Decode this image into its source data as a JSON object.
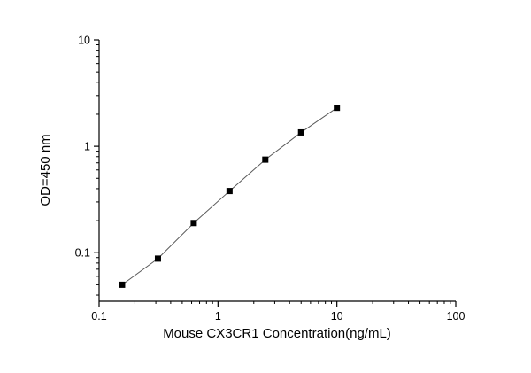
{
  "figure": {
    "background": "#ffffff"
  },
  "chart_data": {
    "type": "scatter",
    "line_overlay": true,
    "x": [
      0.156,
      0.3125,
      0.625,
      1.25,
      2.5,
      5,
      10
    ],
    "y": [
      0.05,
      0.088,
      0.19,
      0.38,
      0.75,
      1.35,
      2.3
    ],
    "title": "",
    "xlabel": "Mouse CX3CR1 Concentration(ng/mL)",
    "ylabel": "OD=450 nm",
    "xscale": "log",
    "yscale": "log",
    "xlim": [
      0.1,
      100
    ],
    "ylim": [
      0.035,
      10
    ],
    "xticks": [
      0.1,
      1,
      10,
      100
    ],
    "xtick_labels": [
      "0.1",
      "1",
      "10",
      "100"
    ],
    "yticks": [
      0.1,
      1,
      10
    ],
    "ytick_labels": [
      "0.1",
      "1",
      "10"
    ],
    "grid": false,
    "legend": null,
    "marker": "square",
    "marker_size": 7,
    "colors": {
      "marker": "#000000",
      "line": "#595959",
      "axis": "#000000",
      "text": "#000000",
      "background": "#ffffff"
    }
  }
}
